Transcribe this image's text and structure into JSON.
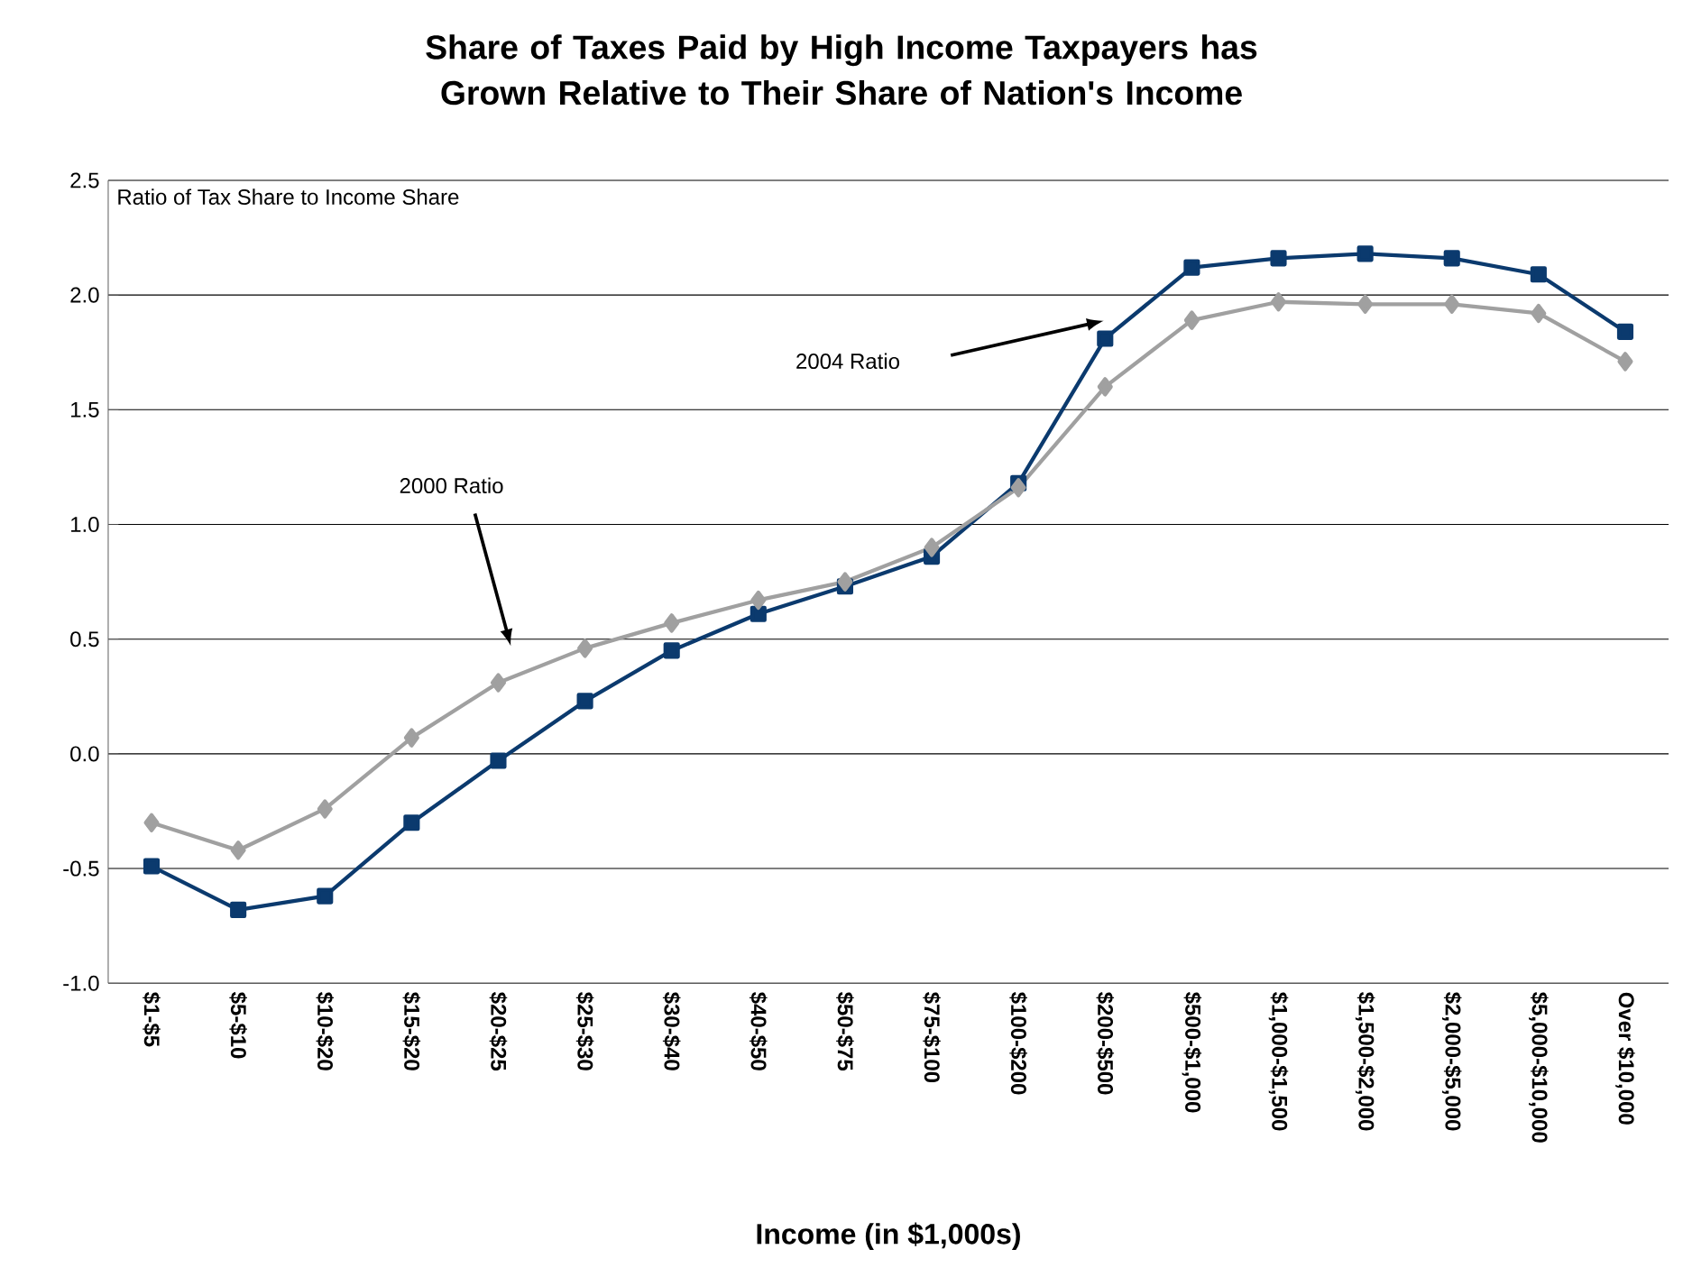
{
  "chart_data": {
    "type": "line",
    "title": "Share of Taxes Paid by High Income Taxpayers has Grown Relative to Their Share of Nation's Income",
    "xlabel": "Income (in $1,000s)",
    "ylabel": "Ratio of Tax Share to Income Share",
    "categories": [
      "$1-$5",
      "$5-$10",
      "$10-$20",
      "$15-$20",
      "$20-$25",
      "$25-$30",
      "$30-$40",
      "$40-$50",
      "$50-$75",
      "$75-$100",
      "$100-$200",
      "$200-$500",
      "$500-$1,000",
      "$1,000-$1,500",
      "$1,500-$2,000",
      "$2,000-$5,000",
      "$5,000-$10,000",
      "Over $10,000"
    ],
    "series": [
      {
        "color": "#0b3a6e",
        "marker": "square",
        "values": [
          -0.49,
          -0.68,
          -0.62,
          -0.3,
          -0.03,
          0.23,
          0.45,
          0.61,
          0.73,
          0.86,
          1.18,
          1.81,
          2.12,
          2.16,
          2.18,
          2.16,
          2.09,
          1.84
        ]
      },
      {
        "color": "#a0a0a0",
        "marker": "diamond",
        "values": [
          -0.3,
          -0.42,
          -0.24,
          0.07,
          0.31,
          0.46,
          0.57,
          0.67,
          0.75,
          0.9,
          1.16,
          1.6,
          1.89,
          1.97,
          1.96,
          1.96,
          1.92,
          1.71
        ]
      }
    ],
    "annotations": [
      "2000 Ratio",
      "2004 Ratio"
    ],
    "ylim": [
      -1.0,
      2.5
    ],
    "yticks": [
      {
        "value": -1.0,
        "label": "-1.0"
      },
      {
        "value": -0.5,
        "label": "-0.5"
      },
      {
        "value": 0.0,
        "label": "0.0"
      },
      {
        "value": 0.5,
        "label": "0.5"
      },
      {
        "value": 1.0,
        "label": "1.0"
      },
      {
        "value": 1.5,
        "label": "1.5"
      },
      {
        "value": 2.0,
        "label": "2.0"
      },
      {
        "value": 2.5,
        "label": "2.5"
      }
    ],
    "grid": "y",
    "line_style": "solid"
  }
}
